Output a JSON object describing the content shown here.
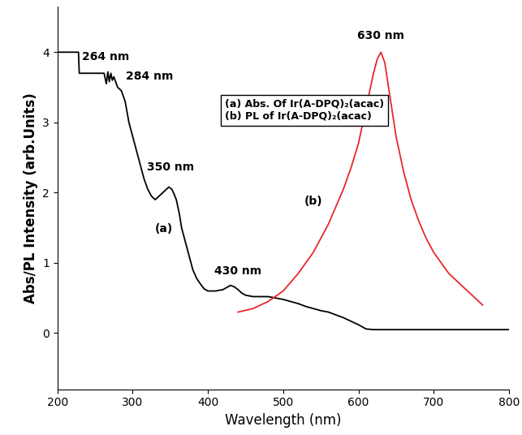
{
  "chart_data": {
    "type": "line",
    "x_label": "Wavelength (nm)",
    "y_label": "Abs/PL Intensity (arb.Units)",
    "xlim": [
      200,
      800
    ],
    "xticks": [
      200,
      300,
      400,
      500,
      600,
      700,
      800
    ],
    "ylim": [
      -0.8,
      4.65
    ],
    "yticks": [
      0,
      1,
      2,
      3,
      4
    ],
    "grid": false,
    "series": [
      {
        "color": "#000000",
        "x": [
          200,
          228,
          229,
          262,
          265,
          267,
          269,
          271,
          273,
          275,
          280,
          285,
          290,
          295,
          300,
          305,
          310,
          315,
          320,
          325,
          330,
          335,
          340,
          345,
          348,
          352,
          355,
          358,
          362,
          365,
          370,
          375,
          380,
          385,
          390,
          395,
          400,
          410,
          420,
          425,
          430,
          435,
          440,
          445,
          450,
          460,
          470,
          480,
          490,
          500,
          510,
          520,
          530,
          540,
          550,
          560,
          570,
          580,
          590,
          600,
          605,
          610,
          620,
          700,
          800
        ],
        "values": [
          4.0,
          4.0,
          3.7,
          3.7,
          3.55,
          3.72,
          3.58,
          3.7,
          3.6,
          3.65,
          3.5,
          3.45,
          3.3,
          3.0,
          2.8,
          2.6,
          2.4,
          2.2,
          2.05,
          1.95,
          1.9,
          1.95,
          2.0,
          2.05,
          2.08,
          2.05,
          1.98,
          1.9,
          1.7,
          1.5,
          1.3,
          1.1,
          0.9,
          0.78,
          0.7,
          0.63,
          0.6,
          0.6,
          0.62,
          0.65,
          0.68,
          0.66,
          0.62,
          0.57,
          0.54,
          0.52,
          0.52,
          0.52,
          0.5,
          0.48,
          0.45,
          0.42,
          0.38,
          0.35,
          0.32,
          0.3,
          0.26,
          0.22,
          0.17,
          0.12,
          0.09,
          0.06,
          0.05,
          0.05,
          0.05
        ]
      },
      {
        "color": "#e8272a",
        "x": [
          440,
          460,
          480,
          500,
          520,
          540,
          560,
          580,
          590,
          600,
          610,
          620,
          625,
          630,
          635,
          640,
          650,
          660,
          670,
          680,
          690,
          700,
          720,
          740,
          760,
          765
        ],
        "values": [
          0.3,
          0.35,
          0.45,
          0.6,
          0.85,
          1.15,
          1.55,
          2.05,
          2.35,
          2.7,
          3.2,
          3.7,
          3.9,
          4.0,
          3.85,
          3.5,
          2.8,
          2.3,
          1.9,
          1.6,
          1.35,
          1.15,
          0.85,
          0.65,
          0.45,
          0.4
        ]
      }
    ],
    "annotations": [
      "264 nm",
      "284 nm",
      "350 nm",
      "430 nm",
      "630 nm",
      "(a)",
      "(b)"
    ],
    "text_box": [
      "(a) Abs. Of Ir(A-DPQ)₂(acac)",
      "(b) PL of Ir(A-DPQ)₂(acac)"
    ]
  }
}
